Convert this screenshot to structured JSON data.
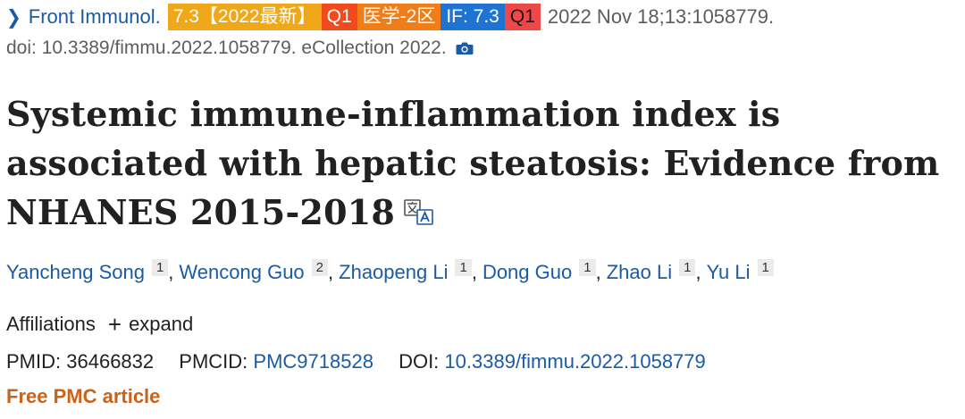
{
  "citation": {
    "journal": "Front Immunol.",
    "badges": {
      "if_year": "7.3【2022最新】",
      "q1_first": "Q1",
      "zone": "医学-2区",
      "if_value": "IF: 7.3",
      "q1_second": "Q1"
    },
    "date": "2022 Nov 18;13:1058779.",
    "doi_line": "doi: 10.3389/fimmu.2022.1058779. eCollection 2022."
  },
  "article": {
    "title": "Systemic immune-inflammation index is associated with hepatic steatosis: Evidence from NHANES 2015-2018"
  },
  "authors": [
    {
      "name": "Yancheng Song",
      "aff": "1"
    },
    {
      "name": "Wencong Guo",
      "aff": "2"
    },
    {
      "name": "Zhaopeng Li",
      "aff": "1"
    },
    {
      "name": "Dong Guo",
      "aff": "1"
    },
    {
      "name": "Zhao Li",
      "aff": "1"
    },
    {
      "name": "Yu Li",
      "aff": "1"
    }
  ],
  "affiliations": {
    "label": "Affiliations",
    "expand_label": "expand"
  },
  "identifiers": {
    "pmid_label": "PMID:",
    "pmid": "36466832",
    "pmcid_label": "PMCID:",
    "pmcid": "PMC9718528",
    "doi_label": "DOI:",
    "doi": "10.3389/fimmu.2022.1058779"
  },
  "free_article": "Free PMC article",
  "icons": {
    "chevron": "chevron-right-icon",
    "camera": "camera-icon",
    "translate": "translate-icon"
  },
  "colors": {
    "link": "#1a5ba6",
    "free_article": "#c8631d",
    "badge_if": "#f0a81b",
    "badge_q1": "#f24a1f",
    "badge_zone": "#f07d18",
    "badge_if_value": "#1f74d3",
    "badge_q1_second": "#f04848"
  }
}
